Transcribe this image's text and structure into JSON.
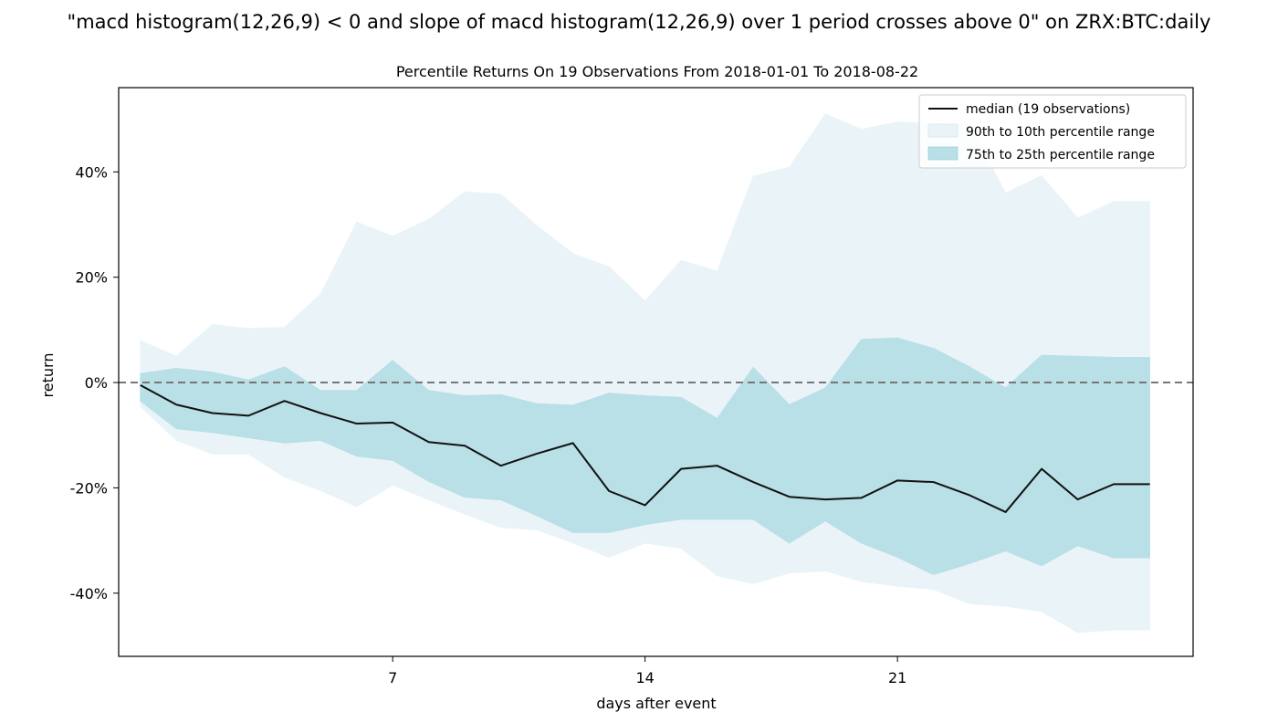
{
  "suptitle": "\"macd histogram(12,26,9) < 0 and slope of macd histogram(12,26,9) over 1 period crosses above 0\" on ZRX:BTC:daily",
  "chart_data": {
    "type": "area",
    "title": "Percentile Returns On 19 Observations From 2018-01-01 To 2018-08-22",
    "xlabel": "days after event",
    "ylabel": "return",
    "xlim": [
      -0.6,
      29.2
    ],
    "ylim": [
      -52,
      56
    ],
    "xticks": [
      7,
      14,
      21
    ],
    "xtick_labels": [
      "7",
      "14",
      "21"
    ],
    "yticks": [
      -40,
      -20,
      0,
      20,
      40
    ],
    "ytick_labels": [
      "-40%",
      "-20%",
      "0%",
      "20%",
      "40%"
    ],
    "reference_line": {
      "y": 0,
      "style": "dashed",
      "color": "#777777"
    },
    "legend_position": "top-right",
    "grid": false,
    "x": [
      0,
      1,
      2,
      3,
      4,
      5,
      6,
      7,
      8,
      9,
      10,
      11,
      12,
      13,
      14,
      15,
      16,
      17,
      18,
      19,
      20,
      21,
      22,
      23,
      24,
      25,
      26,
      27,
      28
    ],
    "series": [
      {
        "name": "median (19 observations)",
        "kind": "line",
        "color": "#111111",
        "values": [
          -0.5,
          -4.2,
          -5.8,
          -6.3,
          -3.5,
          -5.8,
          -7.8,
          -7.6,
          -11.3,
          -12.0,
          -15.8,
          -13.5,
          -11.5,
          -20.6,
          -23.3,
          -16.4,
          -15.8,
          -18.9,
          -21.7,
          -22.2,
          -21.9,
          -18.6,
          -18.9,
          -21.4,
          -24.6,
          -16.4,
          -22.2,
          -19.3,
          -19.3
        ]
      },
      {
        "name": "90th to 10th percentile range",
        "kind": "band",
        "color": "#eaf4f8",
        "upper": [
          8.0,
          5.0,
          11.0,
          10.3,
          10.5,
          16.8,
          30.5,
          27.8,
          31.0,
          36.2,
          35.8,
          29.8,
          24.5,
          22.0,
          15.5,
          23.2,
          21.2,
          39.2,
          40.9,
          51.0,
          48.1,
          49.5,
          49.2,
          49.0,
          36.0,
          39.3,
          31.2,
          34.4,
          34.4
        ],
        "lower": [
          -4.5,
          -11.0,
          -13.6,
          -13.6,
          -18.0,
          -20.5,
          -23.6,
          -19.5,
          -22.3,
          -25.0,
          -27.5,
          -28.0,
          -30.5,
          -33.2,
          -30.5,
          -31.5,
          -36.7,
          -38.2,
          -36.2,
          -35.8,
          -37.8,
          -38.7,
          -39.3,
          -42.0,
          -42.5,
          -43.5,
          -47.5,
          -47.0,
          -47.0
        ]
      },
      {
        "name": "75th to 25th percentile range",
        "kind": "band",
        "color": "#b9dfe7",
        "upper": [
          1.7,
          2.7,
          2.0,
          0.5,
          3.0,
          -1.5,
          -1.5,
          4.2,
          -1.5,
          -2.5,
          -2.3,
          -4.0,
          -4.3,
          -2.0,
          -2.5,
          -2.8,
          -6.8,
          2.9,
          -4.2,
          -1.0,
          8.2,
          8.5,
          6.5,
          3.0,
          -1.0,
          5.2,
          5.0,
          4.8,
          4.8
        ],
        "lower": [
          -3.5,
          -8.8,
          -9.5,
          -10.5,
          -11.5,
          -11.0,
          -14.0,
          -14.8,
          -18.8,
          -21.8,
          -22.3,
          -25.3,
          -28.5,
          -28.5,
          -27.0,
          -26.0,
          -26.0,
          -26.0,
          -30.5,
          -26.3,
          -30.5,
          -33.2,
          -36.5,
          -34.4,
          -32.0,
          -34.8,
          -31.0,
          -33.3,
          -33.3
        ]
      }
    ]
  }
}
